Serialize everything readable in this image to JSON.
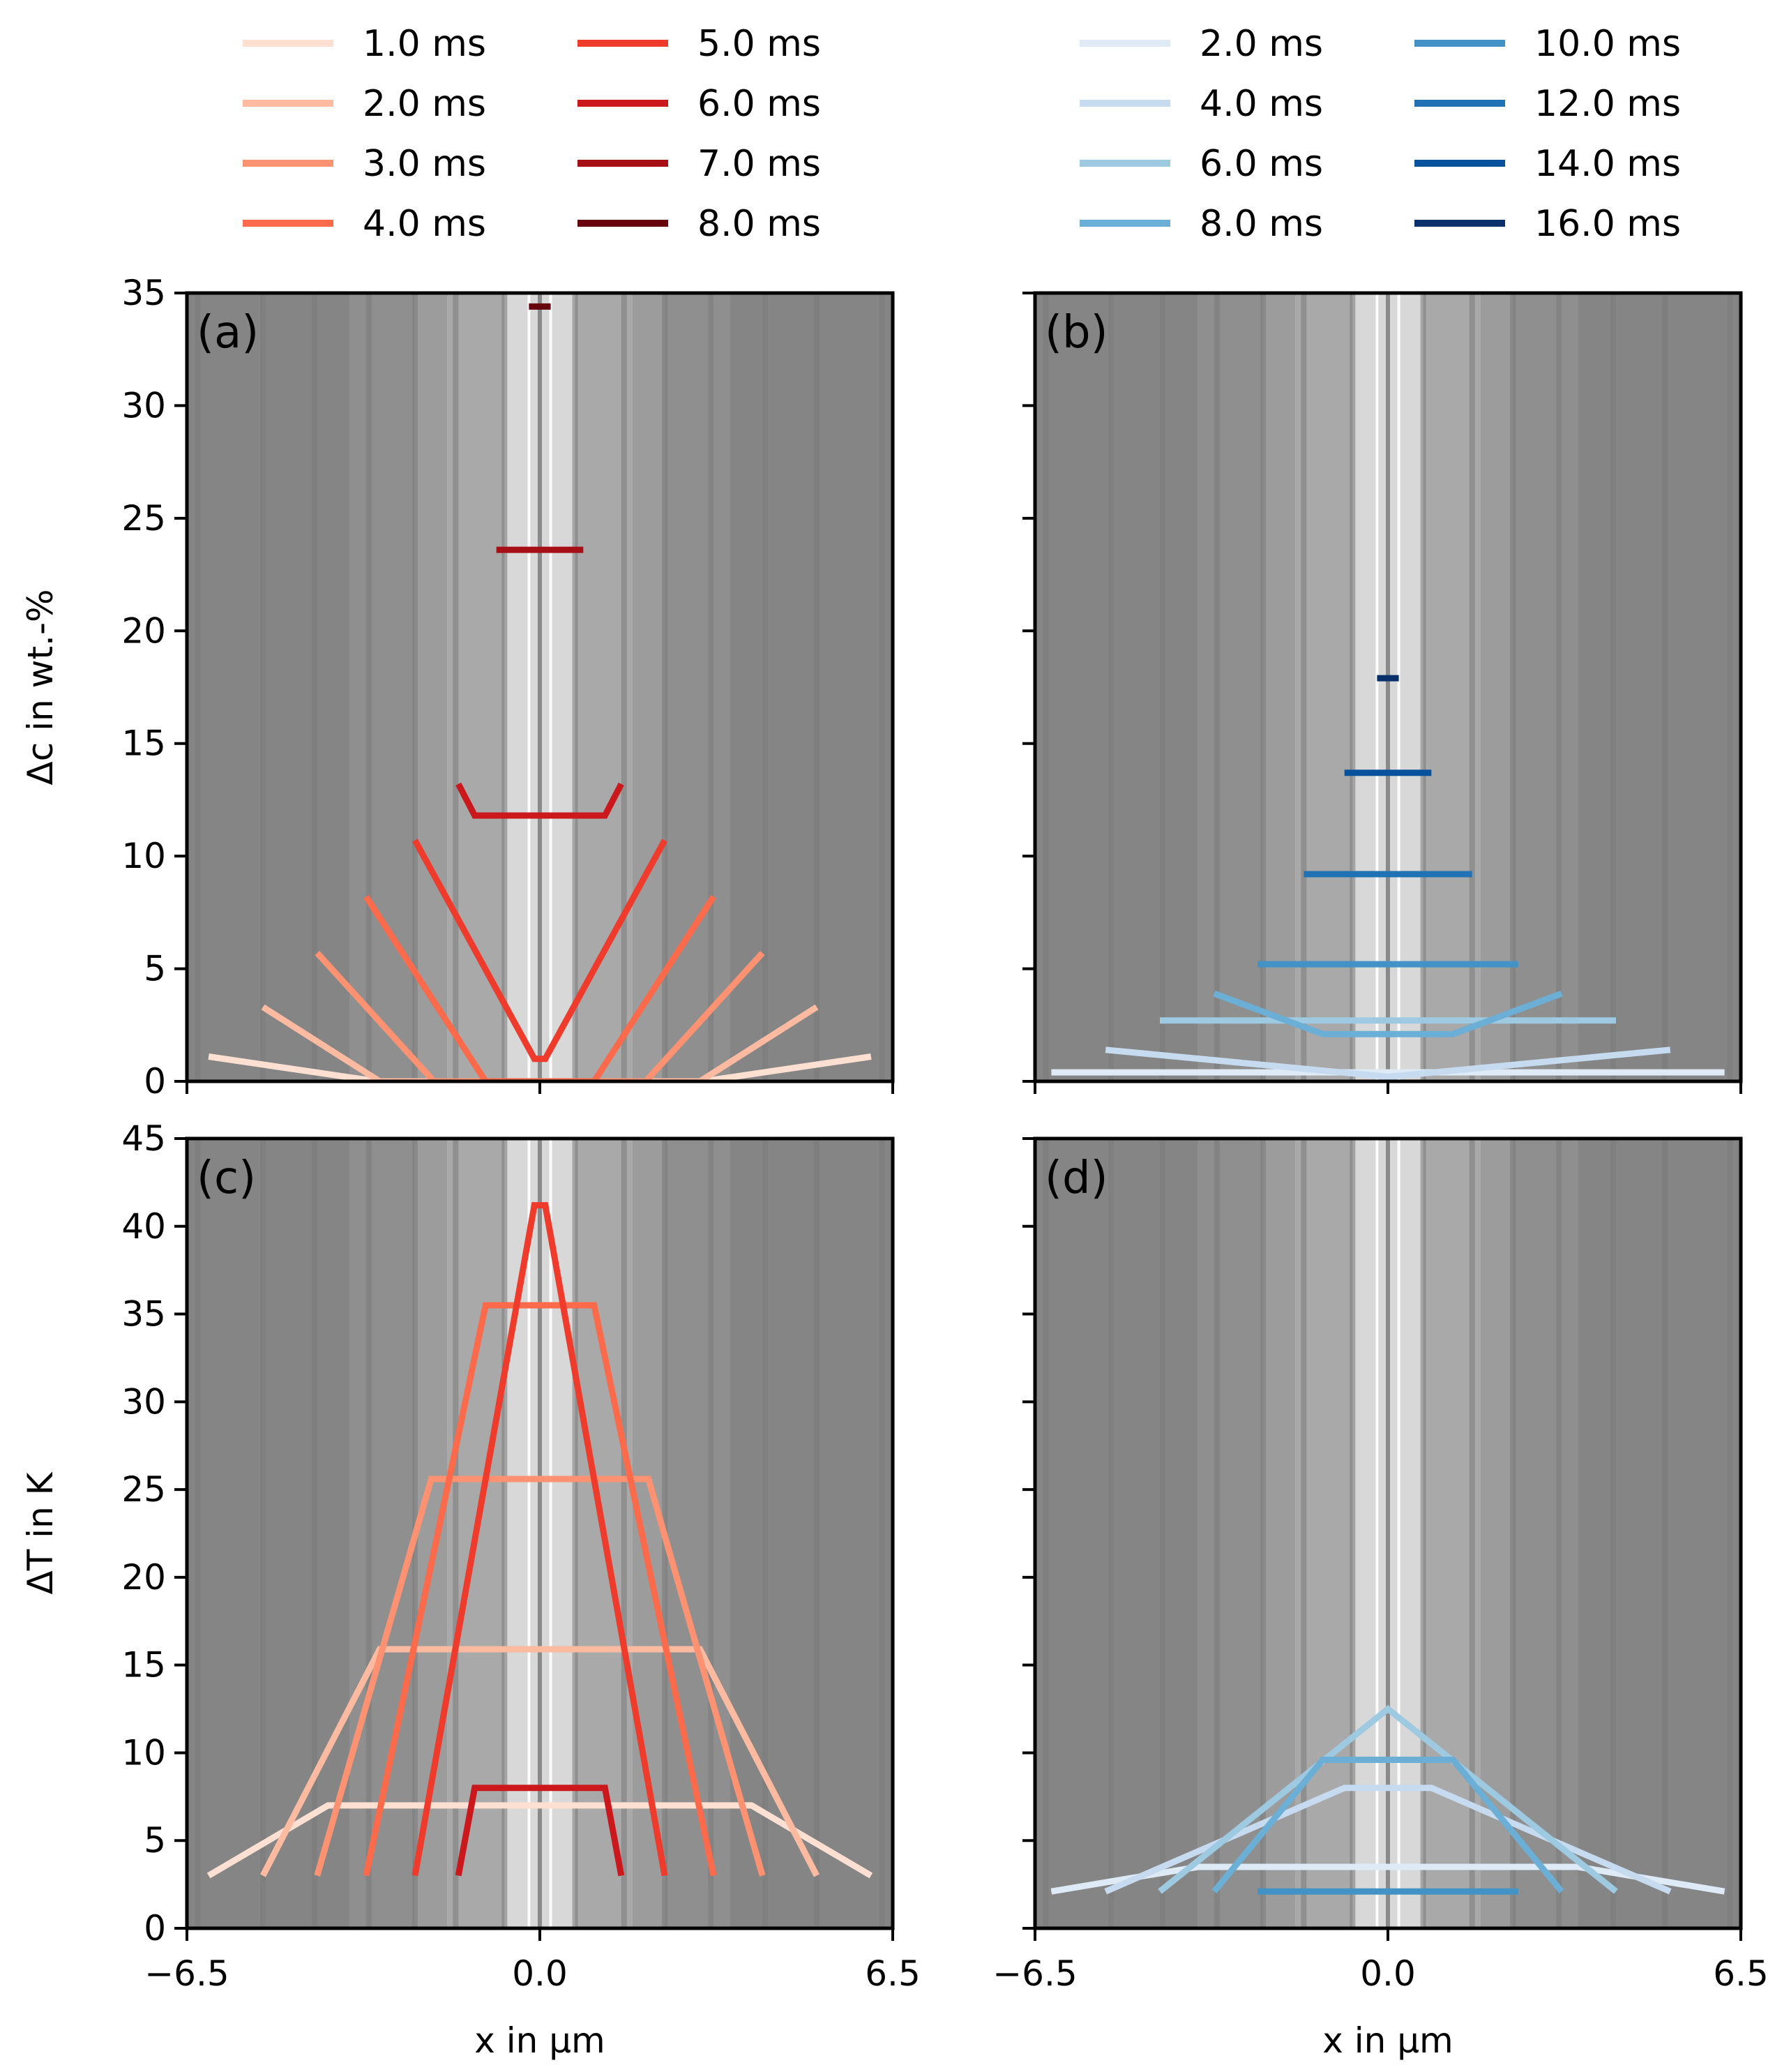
{
  "chart_data": {
    "type": "line",
    "legends": [
      {
        "name": "red-legend",
        "entries": [
          {
            "label": "1.0 ms",
            "color": "#fee0d2"
          },
          {
            "label": "2.0 ms",
            "color": "#fcbba1"
          },
          {
            "label": "3.0 ms",
            "color": "#fc9272"
          },
          {
            "label": "4.0 ms",
            "color": "#fb6a4a"
          },
          {
            "label": "5.0 ms",
            "color": "#ef3b2c"
          },
          {
            "label": "6.0 ms",
            "color": "#cb181d"
          },
          {
            "label": "7.0 ms",
            "color": "#a50f15"
          },
          {
            "label": "8.0 ms",
            "color": "#67000d"
          }
        ]
      },
      {
        "name": "blue-legend",
        "entries": [
          {
            "label": "2.0 ms",
            "color": "#deebf7"
          },
          {
            "label": "4.0 ms",
            "color": "#c6dbef"
          },
          {
            "label": "6.0 ms",
            "color": "#9ecae1"
          },
          {
            "label": "8.0 ms",
            "color": "#6baed6"
          },
          {
            "label": "10.0 ms",
            "color": "#4292c6"
          },
          {
            "label": "12.0 ms",
            "color": "#2171b5"
          },
          {
            "label": "14.0 ms",
            "color": "#08519c"
          },
          {
            "label": "16.0 ms",
            "color": "#08306b"
          }
        ]
      }
    ],
    "x_axis": {
      "label": "x in μm",
      "range": [
        -6.5,
        6.5
      ],
      "ticks": [
        -6.5,
        0.0,
        6.5
      ],
      "tick_labels": [
        "−6.5",
        "0.0",
        "6.5"
      ]
    },
    "background": {
      "description_colors": [
        "#858585",
        "#8f8f8f",
        "#9c9c9c",
        "#a9a9a9",
        "#bdbdbd",
        "#d8d8d8"
      ],
      "bands": [
        {
          "x0": -6.5,
          "x1": -3.5,
          "color": "#858585"
        },
        {
          "x0": -3.5,
          "x1": -2.3,
          "color": "#8f8f8f"
        },
        {
          "x0": -2.3,
          "x1": -1.7,
          "color": "#9c9c9c"
        },
        {
          "x0": -1.7,
          "x1": -0.65,
          "color": "#a9a9a9"
        },
        {
          "x0": -0.65,
          "x1": 0.65,
          "color": "#d8d8d8"
        },
        {
          "x0": 0.65,
          "x1": 1.7,
          "color": "#a9a9a9"
        },
        {
          "x0": 1.7,
          "x1": 2.3,
          "color": "#9c9c9c"
        },
        {
          "x0": 2.3,
          "x1": 3.5,
          "color": "#8f8f8f"
        },
        {
          "x0": 3.5,
          "x1": 6.5,
          "color": "#858585"
        }
      ],
      "grain_boundaries": [
        -6.3,
        -5.1,
        -4.15,
        -3.15,
        -2.3,
        -1.55,
        -0.65,
        -0.2,
        0.2,
        0.65,
        1.55,
        2.3,
        3.15,
        4.15,
        5.1,
        6.3
      ]
    },
    "panels": [
      {
        "name": "panel-a",
        "label": "(a)",
        "ylabel": "Δc in wt.-%",
        "ylim": [
          0,
          35
        ],
        "yticks": [
          0,
          5,
          10,
          15,
          20,
          25,
          30,
          35
        ],
        "show_y_tick_labels": true,
        "show_x_tick_labels": false,
        "series": [
          {
            "name": "1.0 ms",
            "color": "#fee0d2",
            "x": [
              -6.1,
              -3.0,
              3.0,
              6.1
            ],
            "y": [
              1.1,
              0.0,
              0.0,
              1.1
            ]
          },
          {
            "name": "2.0 ms",
            "color": "#fcbba1",
            "x": [
              -5.1,
              -2.95,
              2.95,
              5.1
            ],
            "y": [
              3.3,
              0.0,
              0.0,
              3.3
            ]
          },
          {
            "name": "3.0 ms",
            "color": "#fc9272",
            "x": [
              -4.1,
              -1.95,
              1.95,
              4.1
            ],
            "y": [
              5.7,
              0.0,
              0.0,
              5.7
            ]
          },
          {
            "name": "4.0 ms",
            "color": "#fb6a4a",
            "x": [
              -3.2,
              -1.0,
              1.0,
              3.2
            ],
            "y": [
              8.2,
              0.0,
              0.0,
              8.2
            ]
          },
          {
            "name": "5.0 ms",
            "color": "#ef3b2c",
            "x": [
              -2.3,
              -0.1,
              0.1,
              2.3
            ],
            "y": [
              10.7,
              1.0,
              1.0,
              10.7
            ]
          },
          {
            "name": "6.0 ms",
            "color": "#cb181d",
            "x": [
              -1.5,
              -1.2,
              1.2,
              1.5
            ],
            "y": [
              13.2,
              11.8,
              11.8,
              13.2
            ]
          },
          {
            "name": "7.0 ms",
            "color": "#a50f15",
            "x": [
              -0.8,
              0.8
            ],
            "y": [
              23.6,
              23.6
            ]
          },
          {
            "name": "8.0 ms",
            "color": "#67000d",
            "x": [
              -0.2,
              0.2
            ],
            "y": [
              34.4,
              34.4
            ]
          }
        ]
      },
      {
        "name": "panel-b",
        "label": "(b)",
        "ylabel": "",
        "ylim": [
          0,
          35
        ],
        "yticks": [
          0,
          5,
          10,
          15,
          20,
          25,
          30,
          35
        ],
        "show_y_tick_labels": false,
        "show_x_tick_labels": false,
        "series": [
          {
            "name": "2.0 ms",
            "color": "#deebf7",
            "x": [
              -6.2,
              6.2
            ],
            "y": [
              0.4,
              0.4
            ]
          },
          {
            "name": "4.0 ms",
            "color": "#c6dbef",
            "x": [
              -5.2,
              0.0,
              5.2
            ],
            "y": [
              1.4,
              0.2,
              1.4
            ]
          },
          {
            "name": "6.0 ms",
            "color": "#9ecae1",
            "x": [
              -4.2,
              4.2
            ],
            "y": [
              2.7,
              2.7
            ]
          },
          {
            "name": "8.0 ms",
            "color": "#6baed6",
            "x": [
              -3.2,
              -1.2,
              1.2,
              3.2
            ],
            "y": [
              3.9,
              2.1,
              2.1,
              3.9
            ]
          },
          {
            "name": "10.0 ms",
            "color": "#4292c6",
            "x": [
              -2.4,
              2.4
            ],
            "y": [
              5.2,
              5.2
            ]
          },
          {
            "name": "12.0 ms",
            "color": "#2171b5",
            "x": [
              -1.55,
              1.55
            ],
            "y": [
              9.2,
              9.2
            ]
          },
          {
            "name": "14.0 ms",
            "color": "#08519c",
            "x": [
              -0.8,
              0.8
            ],
            "y": [
              13.7,
              13.7
            ]
          },
          {
            "name": "16.0 ms",
            "color": "#08306b",
            "x": [
              -0.2,
              0.2
            ],
            "y": [
              17.9,
              17.9
            ]
          }
        ]
      },
      {
        "name": "panel-c",
        "label": "(c)",
        "ylabel": "ΔT in K",
        "ylim": [
          0,
          45
        ],
        "yticks": [
          0,
          5,
          10,
          15,
          20,
          25,
          30,
          35,
          40,
          45
        ],
        "show_y_tick_labels": true,
        "show_x_tick_labels": true,
        "series": [
          {
            "name": "1.0 ms",
            "color": "#fee0d2",
            "x": [
              -6.1,
              -3.9,
              3.9,
              6.1
            ],
            "y": [
              3.0,
              7.0,
              7.0,
              3.0
            ]
          },
          {
            "name": "2.0 ms",
            "color": "#fcbba1",
            "x": [
              -5.1,
              -2.95,
              2.95,
              5.1
            ],
            "y": [
              3.0,
              15.9,
              15.9,
              3.0
            ]
          },
          {
            "name": "3.0 ms",
            "color": "#fc9272",
            "x": [
              -4.1,
              -2.0,
              2.0,
              4.1
            ],
            "y": [
              3.0,
              25.6,
              25.6,
              3.0
            ]
          },
          {
            "name": "4.0 ms",
            "color": "#fb6a4a",
            "x": [
              -3.2,
              -1.0,
              1.0,
              3.2
            ],
            "y": [
              3.0,
              35.5,
              35.5,
              3.0
            ]
          },
          {
            "name": "5.0 ms",
            "color": "#ef3b2c",
            "x": [
              -2.3,
              -0.1,
              0.1,
              2.3
            ],
            "y": [
              3.0,
              41.2,
              41.2,
              3.0
            ]
          },
          {
            "name": "6.0 ms",
            "color": "#cb181d",
            "x": [
              -1.5,
              -1.2,
              1.2,
              1.5
            ],
            "y": [
              3.0,
              8.0,
              8.0,
              3.0
            ]
          }
        ]
      },
      {
        "name": "panel-d",
        "label": "(d)",
        "ylabel": "",
        "ylim": [
          0,
          45
        ],
        "yticks": [
          0,
          5,
          10,
          15,
          20,
          25,
          30,
          35,
          40,
          45
        ],
        "show_y_tick_labels": false,
        "show_x_tick_labels": true,
        "series": [
          {
            "name": "2.0 ms",
            "color": "#deebf7",
            "x": [
              -6.2,
              -3.5,
              3.5,
              6.2
            ],
            "y": [
              2.1,
              3.5,
              3.5,
              2.1
            ]
          },
          {
            "name": "4.0 ms",
            "color": "#c6dbef",
            "x": [
              -5.2,
              -0.8,
              0.8,
              5.2
            ],
            "y": [
              2.1,
              8.0,
              8.0,
              2.1
            ]
          },
          {
            "name": "6.0 ms",
            "color": "#9ecae1",
            "x": [
              -4.2,
              0.0,
              4.2
            ],
            "y": [
              2.1,
              12.5,
              2.1
            ]
          },
          {
            "name": "8.0 ms",
            "color": "#6baed6",
            "x": [
              -3.2,
              -1.2,
              1.2,
              3.2
            ],
            "y": [
              2.1,
              9.6,
              9.6,
              2.1
            ]
          },
          {
            "name": "10.0 ms",
            "color": "#4292c6",
            "x": [
              -2.4,
              2.4
            ],
            "y": [
              2.1,
              2.1
            ]
          }
        ]
      }
    ]
  }
}
